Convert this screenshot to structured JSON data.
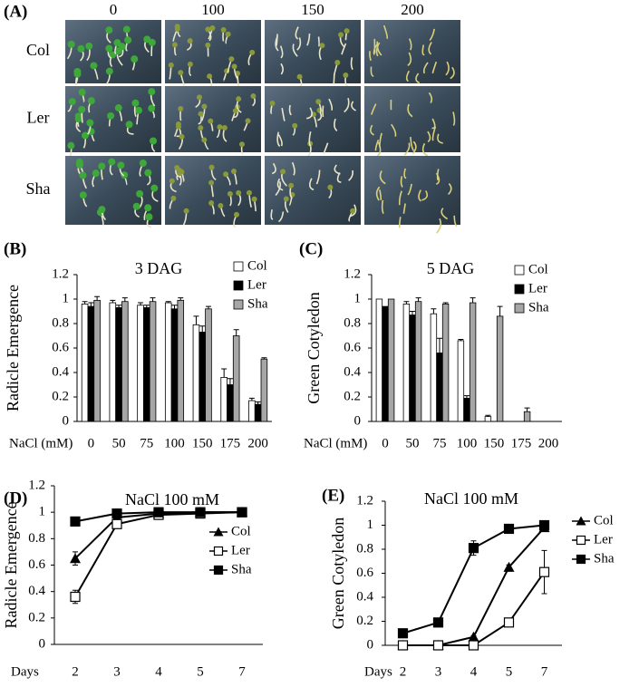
{
  "panel_a": {
    "label": "(A)",
    "columns": [
      "0",
      "100",
      "150",
      "200"
    ],
    "rows": [
      "Col",
      "Ler",
      "Sha"
    ]
  },
  "chart_data": [
    {
      "type": "bar",
      "label": "(B)",
      "title": "3 DAG",
      "y_label": "Radicle Emergence",
      "x_label": "NaCl (mM)",
      "categories": [
        "0",
        "50",
        "75",
        "100",
        "150",
        "175",
        "200"
      ],
      "series": [
        {
          "name": "Col",
          "color": "#ffffff",
          "values": [
            0.96,
            0.97,
            0.95,
            0.97,
            0.79,
            0.36,
            0.17
          ],
          "errors": [
            0.02,
            0.02,
            0.02,
            0.01,
            0.07,
            0.07,
            0.02
          ]
        },
        {
          "name": "Ler",
          "color": "#000000",
          "values": [
            0.94,
            0.93,
            0.93,
            0.92,
            0.73,
            0.3,
            0.14
          ],
          "errors": [
            0.03,
            0.02,
            0.02,
            0.03,
            0.05,
            0.05,
            0.02
          ]
        },
        {
          "name": "Sha",
          "color": "#a6a6a6",
          "values": [
            0.99,
            0.98,
            0.98,
            0.99,
            0.92,
            0.7,
            0.51
          ],
          "errors": [
            0.03,
            0.03,
            0.03,
            0.02,
            0.02,
            0.05,
            0.01
          ]
        }
      ],
      "ylim": [
        0,
        1.2
      ],
      "yticks": [
        0,
        0.2,
        0.4,
        0.6,
        0.8,
        1,
        1.2
      ]
    },
    {
      "type": "bar",
      "label": "(C)",
      "title": "5 DAG",
      "y_label": "Green Cotyledon",
      "x_label": "NaCl (mM)",
      "categories": [
        "0",
        "50",
        "75",
        "100",
        "150",
        "175",
        "200"
      ],
      "series": [
        {
          "name": "Col",
          "color": "#ffffff",
          "values": [
            1.0,
            0.96,
            0.88,
            0.66,
            0.04,
            0,
            0
          ],
          "errors": [
            0,
            0.02,
            0.04,
            0.01,
            0.01,
            0,
            0
          ]
        },
        {
          "name": "Ler",
          "color": "#000000",
          "values": [
            0.94,
            0.87,
            0.56,
            0.19,
            0,
            0,
            0
          ],
          "errors": [
            0,
            0.03,
            0.12,
            0.02,
            0,
            0,
            0
          ]
        },
        {
          "name": "Sha",
          "color": "#a6a6a6",
          "values": [
            1.0,
            0.98,
            0.96,
            0.97,
            0.86,
            0.08,
            0
          ],
          "errors": [
            0,
            0.03,
            0.01,
            0.04,
            0.08,
            0.03,
            0
          ]
        }
      ],
      "ylim": [
        0,
        1.2
      ],
      "yticks": [
        0,
        0.2,
        0.4,
        0.6,
        0.8,
        1,
        1.2
      ]
    },
    {
      "type": "line",
      "label": "(D)",
      "title": "NaCl 100 mM",
      "y_label": "Radicle Emergence",
      "x_label": "Days",
      "categories": [
        "2",
        "3",
        "4",
        "5",
        "7"
      ],
      "series": [
        {
          "name": "Col",
          "color": "#000000",
          "marker": "triangle",
          "values": [
            0.65,
            0.96,
            0.99,
            1.0,
            1.0
          ],
          "errors": [
            0.05,
            0.01,
            0.01,
            0,
            0
          ]
        },
        {
          "name": "Ler",
          "color": "#000000",
          "marker": "square-open",
          "values": [
            0.36,
            0.91,
            0.98,
            0.99,
            1.0
          ],
          "errors": [
            0.05,
            0.02,
            0.01,
            0,
            0
          ]
        },
        {
          "name": "Sha",
          "color": "#000000",
          "marker": "square",
          "values": [
            0.93,
            0.99,
            1.0,
            1.0,
            1.0
          ],
          "errors": [
            0.01,
            0,
            0,
            0,
            0
          ]
        }
      ],
      "ylim": [
        0,
        1.2
      ],
      "yticks": [
        0,
        0.2,
        0.4,
        0.6,
        0.8,
        1,
        1.2
      ]
    },
    {
      "type": "line",
      "label": "(E)",
      "title": "NaCl 100 mM",
      "y_label": "Green Cotyledon",
      "x_label": "Days",
      "categories": [
        "2",
        "3",
        "4",
        "5",
        "7"
      ],
      "series": [
        {
          "name": "Col",
          "color": "#000000",
          "marker": "triangle",
          "values": [
            0,
            0,
            0.07,
            0.65,
            0.98
          ],
          "errors": [
            0,
            0,
            0.01,
            0.02,
            0.01
          ]
        },
        {
          "name": "Ler",
          "color": "#000000",
          "marker": "square-open",
          "values": [
            0,
            0,
            0,
            0.19,
            0.61
          ],
          "errors": [
            0,
            0,
            0,
            0.01,
            0.18
          ]
        },
        {
          "name": "Sha",
          "color": "#000000",
          "marker": "square",
          "values": [
            0.1,
            0.19,
            0.81,
            0.97,
            1.0
          ],
          "errors": [
            0.01,
            0.01,
            0.06,
            0.01,
            0.01
          ]
        }
      ],
      "ylim": [
        0,
        1.2
      ],
      "yticks": [
        0,
        0.2,
        0.4,
        0.6,
        0.8,
        1,
        1.2
      ]
    }
  ]
}
